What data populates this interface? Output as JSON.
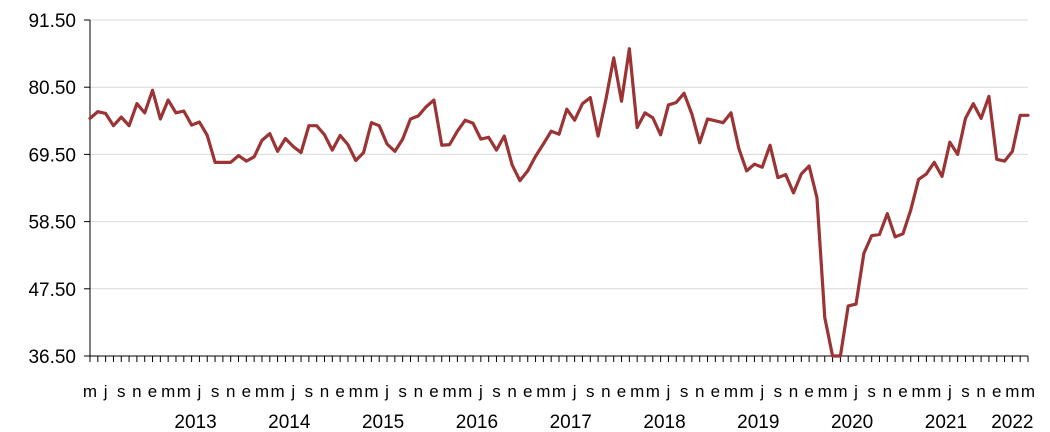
{
  "chart_data": {
    "type": "line",
    "title": "",
    "xlabel": "",
    "ylabel": "",
    "ylim": [
      36.5,
      91.5
    ],
    "y_ticks": [
      "36.50",
      "47.50",
      "58.50",
      "69.50",
      "80.50",
      "91.50"
    ],
    "grid": true,
    "legend": "none",
    "line_color": "#9B3434",
    "x_start": "2012-05",
    "month_labels": [
      "m",
      "j",
      "s",
      "n",
      "e",
      "m",
      "m",
      "j",
      "s",
      "n",
      "e",
      "m",
      "m",
      "j",
      "s",
      "n",
      "e",
      "m",
      "m",
      "j",
      "s",
      "n",
      "e",
      "m",
      "m",
      "j",
      "s",
      "n",
      "e",
      "m",
      "m",
      "j",
      "s",
      "n",
      "e",
      "m",
      "m",
      "j",
      "s",
      "n",
      "e",
      "m",
      "m",
      "j",
      "s",
      "n",
      "e",
      "m",
      "m",
      "j",
      "s",
      "n",
      "e",
      "m",
      "m",
      "j",
      "s",
      "n",
      "e",
      "m",
      "m",
      "j",
      "s",
      "n",
      "e",
      "m"
    ],
    "year_labels": [
      "2013",
      "2014",
      "2015",
      "2016",
      "2017",
      "2018",
      "2019",
      "2020",
      "2021",
      "2022"
    ],
    "series": [
      {
        "values": [
          75.4,
          76.5,
          76.2,
          74.2,
          75.6,
          74.2,
          77.8,
          76.3,
          80.0,
          75.3,
          78.4,
          76.3,
          76.6,
          74.3,
          74.8,
          72.6,
          68.2,
          68.2,
          68.2,
          69.3,
          68.4,
          69.1,
          71.8,
          72.9,
          70.0,
          72.1,
          70.8,
          69.8,
          74.2,
          74.2,
          72.7,
          70.2,
          72.6,
          71.1,
          68.5,
          69.8,
          74.7,
          74.2,
          71.2,
          70.0,
          72.0,
          75.3,
          75.8,
          77.3,
          78.4,
          71.0,
          71.1,
          73.3,
          75.1,
          74.6,
          72.0,
          72.3,
          70.2,
          72.5,
          67.8,
          65.2,
          66.8,
          69.2,
          71.2,
          73.3,
          72.8,
          76.9,
          75.1,
          77.8,
          78.8,
          72.5,
          78.5,
          85.3,
          78.2,
          86.8,
          73.9,
          76.3,
          75.5,
          72.7,
          77.6,
          78.0,
          79.5,
          76.1,
          71.4,
          75.3,
          75.0,
          74.7,
          76.3,
          70.5,
          66.8,
          67.9,
          67.4,
          71.0,
          65.7,
          66.2,
          63.2,
          66.3,
          67.6,
          62.4,
          42.8,
          36.5,
          36.5,
          44.7,
          45.0,
          53.3,
          56.2,
          56.4,
          59.8,
          56.0,
          56.5,
          60.4,
          65.4,
          66.3,
          68.2,
          65.9,
          71.5,
          69.5,
          75.4,
          77.8,
          75.4,
          79.0,
          68.7,
          68.4,
          70.0,
          75.9,
          75.9
        ]
      }
    ]
  }
}
